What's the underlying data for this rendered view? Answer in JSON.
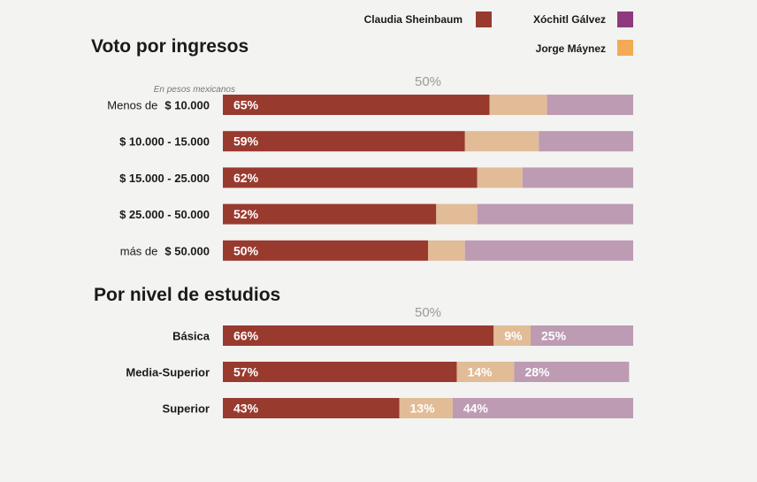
{
  "legend": [
    {
      "name": "Claudia Sheinbaum",
      "color": "#993a2f"
    },
    {
      "name": "Xóchitl Gálvez",
      "color": "#8e3a7c"
    },
    {
      "name": "Jorge Máynez",
      "color": "#f3a955"
    }
  ],
  "bar_colors": {
    "sheinbaum": "#993a2f",
    "maynez": "#e1bc96",
    "galvez": "#bd9bb3"
  },
  "chart_data": [
    {
      "type": "bar",
      "orientation": "horizontal",
      "stacked": true,
      "title": "Voto por ingresos",
      "subtitle": "En pesos mexicanos",
      "midline_label": "50%",
      "xlim": [
        0,
        100
      ],
      "categories": [
        {
          "prefix": "Menos de",
          "label": "$ 10.000"
        },
        {
          "prefix": "",
          "label": "$ 10.000 - 15.000"
        },
        {
          "prefix": "",
          "label": "$ 15.000 - 25.000"
        },
        {
          "prefix": "",
          "label": "$ 25.000 - 50.000"
        },
        {
          "prefix": "más de",
          "label": "$ 50.000"
        }
      ],
      "series": [
        {
          "name": "Claudia Sheinbaum",
          "key": "sheinbaum",
          "values": [
            65,
            59,
            62,
            52,
            50
          ],
          "labels": [
            "65%",
            "59%",
            "62%",
            "52%",
            "50%"
          ]
        },
        {
          "name": "Jorge Máynez",
          "key": "maynez",
          "values": [
            14,
            18,
            11,
            10,
            9
          ],
          "labels": [
            "",
            "",
            "",
            "",
            ""
          ]
        },
        {
          "name": "Xóchitl Gálvez",
          "key": "galvez",
          "values": [
            21,
            23,
            27,
            38,
            41
          ],
          "labels": [
            "",
            "",
            "",
            "",
            ""
          ]
        }
      ]
    },
    {
      "type": "bar",
      "orientation": "horizontal",
      "stacked": true,
      "title": "Por nivel de estudios",
      "subtitle": "",
      "midline_label": "50%",
      "xlim": [
        0,
        100
      ],
      "categories": [
        {
          "prefix": "",
          "label": "Básica"
        },
        {
          "prefix": "",
          "label": "Media-Superior"
        },
        {
          "prefix": "",
          "label": "Superior"
        }
      ],
      "series": [
        {
          "name": "Claudia Sheinbaum",
          "key": "sheinbaum",
          "values": [
            66,
            57,
            43
          ],
          "labels": [
            "66%",
            "57%",
            "43%"
          ]
        },
        {
          "name": "Jorge Máynez",
          "key": "maynez",
          "values": [
            9,
            14,
            13
          ],
          "labels": [
            "9%",
            "14%",
            "13%"
          ]
        },
        {
          "name": "Xóchitl Gálvez",
          "key": "galvez",
          "values": [
            25,
            28,
            44
          ],
          "labels": [
            "25%",
            "28%",
            "44%"
          ]
        }
      ]
    }
  ]
}
